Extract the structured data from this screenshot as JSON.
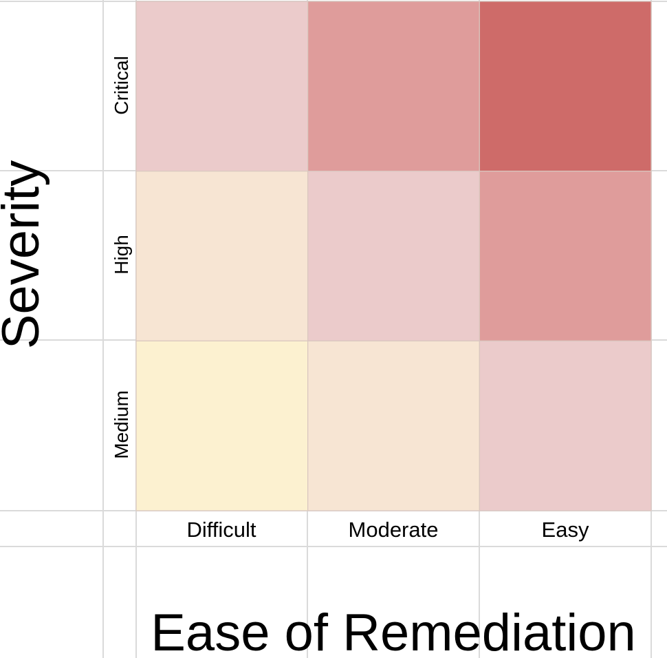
{
  "chart_data": {
    "type": "heatmap",
    "title": "",
    "xlabel": "Ease of Remediation",
    "ylabel": "Severity",
    "x_categories": [
      "Difficult",
      "Moderate",
      "Easy"
    ],
    "y_categories": [
      "Critical",
      "High",
      "Medium"
    ],
    "cells": [
      {
        "row": "Critical",
        "col": "Difficult",
        "color": "#ebcbcb"
      },
      {
        "row": "Critical",
        "col": "Moderate",
        "color": "#df9c9b"
      },
      {
        "row": "Critical",
        "col": "Easy",
        "color": "#ce6b69"
      },
      {
        "row": "High",
        "col": "Difficult",
        "color": "#f7e5d3"
      },
      {
        "row": "High",
        "col": "Moderate",
        "color": "#ebcbcb"
      },
      {
        "row": "High",
        "col": "Easy",
        "color": "#df9c9b"
      },
      {
        "row": "Medium",
        "col": "Difficult",
        "color": "#fcf1d0"
      },
      {
        "row": "Medium",
        "col": "Moderate",
        "color": "#f7e5d3"
      },
      {
        "row": "Medium",
        "col": "Easy",
        "color": "#ebcbcb"
      }
    ],
    "grid": true,
    "legend": "none"
  },
  "colors": {
    "gridline": "#dadada",
    "cell_border": "#d9c7bf",
    "text": "#000000",
    "background": "#ffffff"
  }
}
